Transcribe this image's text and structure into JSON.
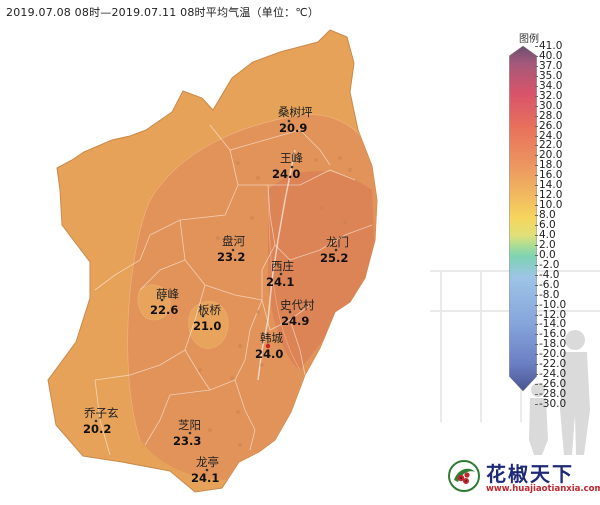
{
  "title": "2019.07.08 08时—2019.07.11 08时平均气温（单位：℃）",
  "legend": {
    "title": "图例",
    "labels": [
      "41.0",
      "40.0",
      "37.0",
      "35.0",
      "34.0",
      "32.0",
      "30.0",
      "28.0",
      "26.0",
      "24.0",
      "22.0",
      "20.0",
      "18.0",
      "16.0",
      "14.0",
      "12.0",
      "10.0",
      "8.0",
      "6.0",
      "4.0",
      "2.0",
      "0.0",
      "-2.0",
      "-4.0",
      "-6.0",
      "-8.0",
      "-10.0",
      "-12.0",
      "-14.0",
      "-16.0",
      "-18.0",
      "-20.0",
      "-22.0",
      "-24.0",
      "-26.0",
      "-28.0",
      "-30.0"
    ]
  },
  "stations": [
    {
      "name": "桑树坪",
      "value": "20.9"
    },
    {
      "name": "王峰",
      "value": "24.0"
    },
    {
      "name": "盘河",
      "value": "23.2"
    },
    {
      "name": "龙门",
      "value": "25.2"
    },
    {
      "name": "西庄",
      "value": "24.1"
    },
    {
      "name": "薛峰",
      "value": "22.6"
    },
    {
      "name": "板桥",
      "value": "21.0"
    },
    {
      "name": "史代村",
      "value": "24.9"
    },
    {
      "name": "韩城",
      "value": "24.0"
    },
    {
      "name": "乔子玄",
      "value": "20.2"
    },
    {
      "name": "芝阳",
      "value": "23.3"
    },
    {
      "name": "龙亭",
      "value": "24.1"
    }
  ],
  "brand": {
    "name": "花椒天下",
    "url": "www.huajiaotianxia.com"
  },
  "colors": {
    "map_fill_outer": "#e7a25a",
    "map_fill_inner": "#e2935a",
    "map_fill_core": "#dc8456",
    "boundary": "#ffffff",
    "legend_top": "#5e4a6e",
    "legend_warm": "#e87f5a",
    "legend_mid": "#f4d15a",
    "legend_green": "#7fd0a0",
    "legend_cold": "#5a6fb8"
  }
}
